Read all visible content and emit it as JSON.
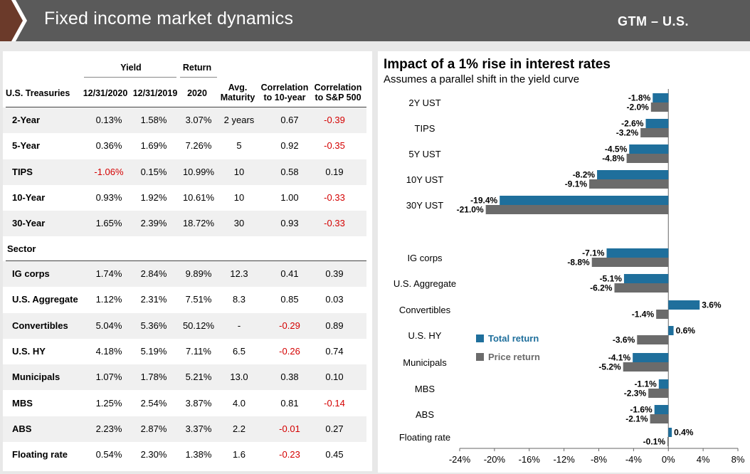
{
  "header": {
    "title": "Fixed income market dynamics",
    "tag": "GTM – U.S."
  },
  "table": {
    "group_headers": {
      "yield": "Yield",
      "return": "Return"
    },
    "columns": {
      "name": "U.S. Treasuries",
      "y2020": "12/31/2020",
      "y2019": "12/31/2019",
      "ret": "2020",
      "mat": "Avg. Maturity",
      "c10": "Correlation to 10-year",
      "csp": "Correlation to S&P 500"
    },
    "sector_label": "Sector",
    "treasury_rows": [
      {
        "name": "2-Year",
        "y2020": "0.13%",
        "y2019": "1.58%",
        "ret": "3.07%",
        "mat": "2 years",
        "c10": "0.67",
        "csp": "-0.39"
      },
      {
        "name": "5-Year",
        "y2020": "0.36%",
        "y2019": "1.69%",
        "ret": "7.26%",
        "mat": "5",
        "c10": "0.92",
        "csp": "-0.35"
      },
      {
        "name": "TIPS",
        "y2020": "-1.06%",
        "y2019": "0.15%",
        "ret": "10.99%",
        "mat": "10",
        "c10": "0.58",
        "csp": "0.19"
      },
      {
        "name": "10-Year",
        "y2020": "0.93%",
        "y2019": "1.92%",
        "ret": "10.61%",
        "mat": "10",
        "c10": "1.00",
        "csp": "-0.33"
      },
      {
        "name": "30-Year",
        "y2020": "1.65%",
        "y2019": "2.39%",
        "ret": "18.72%",
        "mat": "30",
        "c10": "0.93",
        "csp": "-0.33"
      }
    ],
    "sector_rows": [
      {
        "name": "IG corps",
        "y2020": "1.74%",
        "y2019": "2.84%",
        "ret": "9.89%",
        "mat": "12.3",
        "c10": "0.41",
        "csp": "0.39"
      },
      {
        "name": "U.S. Aggregate",
        "y2020": "1.12%",
        "y2019": "2.31%",
        "ret": "7.51%",
        "mat": "8.3",
        "c10": "0.85",
        "csp": "0.03"
      },
      {
        "name": "Convertibles",
        "y2020": "5.04%",
        "y2019": "5.36%",
        "ret": "50.12%",
        "mat": "-",
        "c10": "-0.29",
        "csp": "0.89"
      },
      {
        "name": "U.S. HY",
        "y2020": "4.18%",
        "y2019": "5.19%",
        "ret": "7.11%",
        "mat": "6.5",
        "c10": "-0.26",
        "csp": "0.74"
      },
      {
        "name": "Municipals",
        "y2020": "1.07%",
        "y2019": "1.78%",
        "ret": "5.21%",
        "mat": "13.0",
        "c10": "0.38",
        "csp": "0.10"
      },
      {
        "name": "MBS",
        "y2020": "1.25%",
        "y2019": "2.54%",
        "ret": "3.87%",
        "mat": "4.0",
        "c10": "0.81",
        "csp": "-0.14"
      },
      {
        "name": "ABS",
        "y2020": "2.23%",
        "y2019": "2.87%",
        "ret": "3.37%",
        "mat": "2.2",
        "c10": "-0.01",
        "csp": "0.27"
      },
      {
        "name": "Floating rate",
        "y2020": "0.54%",
        "y2019": "2.30%",
        "ret": "1.38%",
        "mat": "1.6",
        "c10": "-0.23",
        "csp": "0.45"
      }
    ]
  },
  "chart_data": {
    "type": "bar",
    "orientation": "horizontal",
    "title": "Impact of a 1% rise in interest rates",
    "subtitle": "Assumes a parallel shift in the yield curve",
    "categories": [
      "2Y UST",
      "TIPS",
      "5Y UST",
      "10Y UST",
      "30Y UST",
      "IG corps",
      "U.S. Aggregate",
      "Convertibles",
      "U.S. HY",
      "Municipals",
      "MBS",
      "ABS",
      "Floating rate"
    ],
    "series": [
      {
        "name": "Total return",
        "color": "#1f6f9c",
        "values": [
          -1.8,
          -2.6,
          -4.5,
          -8.2,
          -19.4,
          -7.1,
          -5.1,
          3.6,
          0.6,
          -4.1,
          -1.1,
          -1.6,
          0.4
        ]
      },
      {
        "name": "Price return",
        "color": "#6b6b6b",
        "values": [
          -2.0,
          -3.2,
          -4.8,
          -9.1,
          -21.0,
          -8.8,
          -6.2,
          -1.4,
          -3.6,
          -5.2,
          -2.3,
          -2.1,
          -0.1
        ]
      }
    ],
    "xlim": [
      -24,
      8
    ],
    "xticks": [
      "-24%",
      "-20%",
      "-16%",
      "-12%",
      "-8%",
      "-4%",
      "0%",
      "4%",
      "8%"
    ],
    "legend_position": "middle-left"
  }
}
